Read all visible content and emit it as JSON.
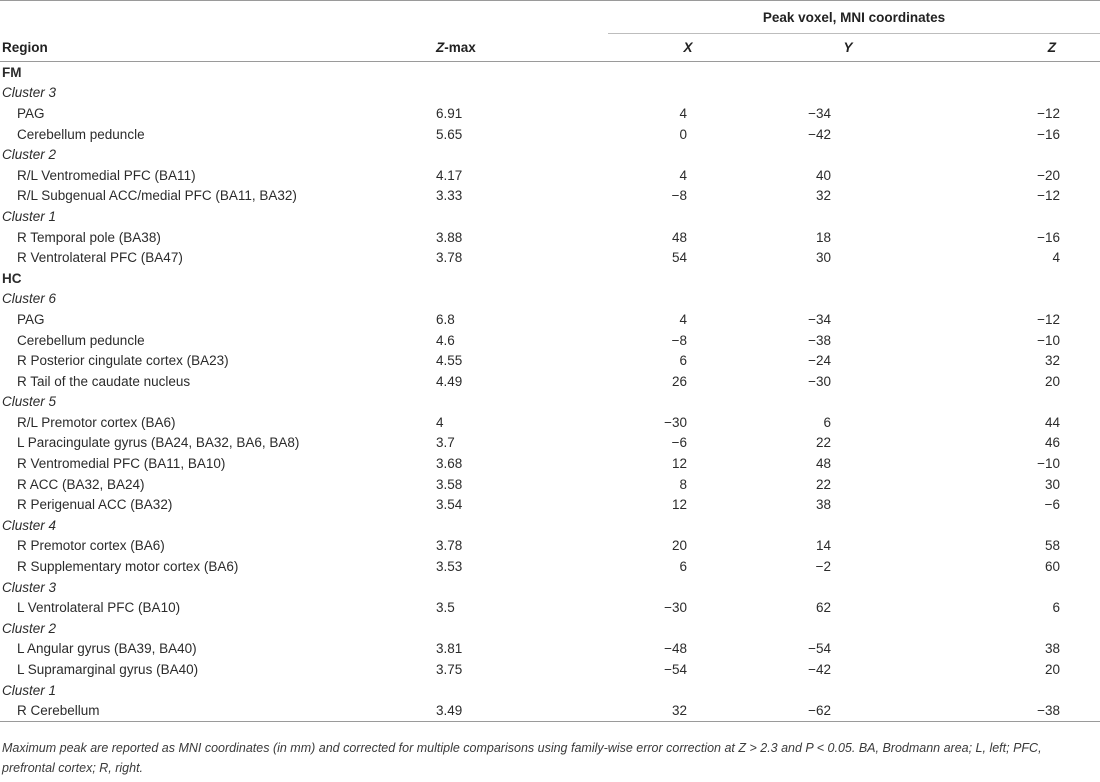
{
  "header": {
    "span_label": "Peak voxel, MNI coordinates",
    "col_region": "Region",
    "col_zmax_italic": "Z",
    "col_zmax_rest": "-max",
    "col_x": "X",
    "col_y": "Y",
    "col_z": "Z"
  },
  "rows": [
    {
      "type": "group",
      "label": "FM"
    },
    {
      "type": "cluster",
      "label": "Cluster 3"
    },
    {
      "type": "data",
      "region": "PAG",
      "zmax": "6.91",
      "x": "4",
      "y": "−34",
      "z": "−12"
    },
    {
      "type": "data",
      "region": "Cerebellum peduncle",
      "zmax": "5.65",
      "x": "0",
      "y": "−42",
      "z": "−16"
    },
    {
      "type": "cluster",
      "label": "Cluster 2"
    },
    {
      "type": "data",
      "region": "R/L Ventromedial PFC (BA11)",
      "zmax": "4.17",
      "x": "4",
      "y": "40",
      "z": "−20"
    },
    {
      "type": "data",
      "region": "R/L Subgenual ACC/medial PFC (BA11, BA32)",
      "zmax": "3.33",
      "x": "−8",
      "y": "32",
      "z": "−12"
    },
    {
      "type": "cluster",
      "label": "Cluster 1"
    },
    {
      "type": "data",
      "region": "R Temporal pole (BA38)",
      "zmax": "3.88",
      "x": "48",
      "y": "18",
      "z": "−16"
    },
    {
      "type": "data",
      "region": "R Ventrolateral PFC (BA47)",
      "zmax": "3.78",
      "x": "54",
      "y": "30",
      "z": "4"
    },
    {
      "type": "group",
      "label": "HC"
    },
    {
      "type": "cluster",
      "label": "Cluster 6"
    },
    {
      "type": "data",
      "region": "PAG",
      "zmax": "6.8",
      "x": "4",
      "y": "−34",
      "z": "−12"
    },
    {
      "type": "data",
      "region": "Cerebellum peduncle",
      "zmax": "4.6",
      "x": "−8",
      "y": "−38",
      "z": "−10"
    },
    {
      "type": "data",
      "region": "R Posterior cingulate cortex (BA23)",
      "zmax": "4.55",
      "x": "6",
      "y": "−24",
      "z": "32"
    },
    {
      "type": "data",
      "region": "R Tail of the caudate nucleus",
      "zmax": "4.49",
      "x": "26",
      "y": "−30",
      "z": "20"
    },
    {
      "type": "cluster",
      "label": "Cluster 5"
    },
    {
      "type": "data",
      "region": "R/L Premotor cortex (BA6)",
      "zmax": "4",
      "x": "−30",
      "y": "6",
      "z": "44"
    },
    {
      "type": "data",
      "region": "L Paracingulate gyrus (BA24, BA32, BA6, BA8)",
      "zmax": "3.7",
      "x": "−6",
      "y": "22",
      "z": "46"
    },
    {
      "type": "data",
      "region": "R Ventromedial PFC (BA11, BA10)",
      "zmax": "3.68",
      "x": "12",
      "y": "48",
      "z": "−10"
    },
    {
      "type": "data",
      "region": "R ACC (BA32, BA24)",
      "zmax": "3.58",
      "x": "8",
      "y": "22",
      "z": "30"
    },
    {
      "type": "data",
      "region": "R Perigenual ACC (BA32)",
      "zmax": "3.54",
      "x": "12",
      "y": "38",
      "z": "−6"
    },
    {
      "type": "cluster",
      "label": "Cluster 4"
    },
    {
      "type": "data",
      "region": "R Premotor cortex (BA6)",
      "zmax": "3.78",
      "x": "20",
      "y": "14",
      "z": "58"
    },
    {
      "type": "data",
      "region": "R Supplementary motor cortex (BA6)",
      "zmax": "3.53",
      "x": "6",
      "y": "−2",
      "z": "60"
    },
    {
      "type": "cluster",
      "label": "Cluster 3"
    },
    {
      "type": "data",
      "region": "L Ventrolateral PFC (BA10)",
      "zmax": "3.5",
      "x": "−30",
      "y": "62",
      "z": "6"
    },
    {
      "type": "cluster",
      "label": "Cluster 2"
    },
    {
      "type": "data",
      "region": "L Angular gyrus (BA39, BA40)",
      "zmax": "3.81",
      "x": "−48",
      "y": "−54",
      "z": "38"
    },
    {
      "type": "data",
      "region": "L Supramarginal gyrus (BA40)",
      "zmax": "3.75",
      "x": "−54",
      "y": "−42",
      "z": "20"
    },
    {
      "type": "cluster",
      "label": "Cluster 1"
    },
    {
      "type": "data",
      "region": "R Cerebellum",
      "zmax": "3.49",
      "x": "32",
      "y": "−62",
      "z": "−38"
    }
  ],
  "footnote": "Maximum peak are reported as MNI coordinates (in mm) and corrected for multiple comparisons using family-wise error correction at Z > 2.3 and P < 0.05. BA, Brodmann area; L, left; PFC, prefrontal cortex; R, right."
}
